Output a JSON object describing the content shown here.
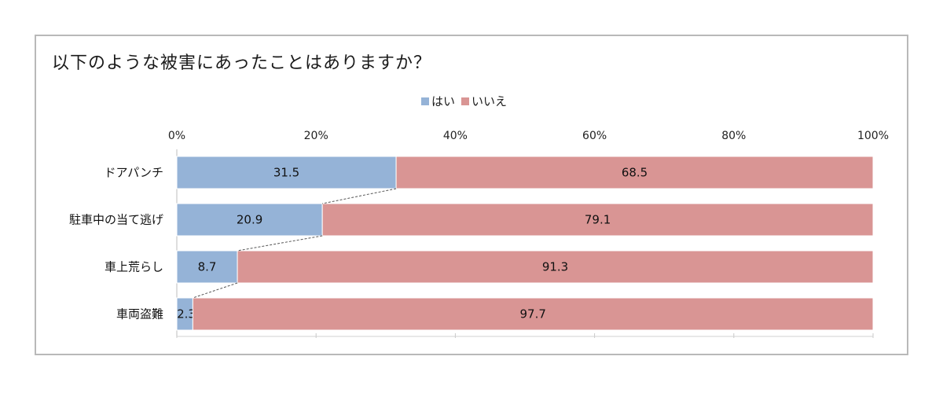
{
  "chart_data": {
    "type": "bar",
    "orientation": "horizontal",
    "stacked": "percent",
    "title": "以下のような被害にあったことはありますか？",
    "categories": [
      "ドアパンチ",
      "駐車中の当て逃げ",
      "車上荒らし",
      "車両盗難"
    ],
    "series": [
      {
        "name": "はい",
        "values": [
          31.5,
          20.9,
          8.7,
          2.3
        ],
        "labels": [
          "31.5",
          "20.9",
          "8.7",
          "2.3"
        ],
        "color": "#95b3d7"
      },
      {
        "name": "いいえ",
        "values": [
          68.5,
          79.1,
          91.3,
          97.7
        ],
        "labels": [
          "68.5",
          "79.1",
          "91.3",
          "97.7"
        ],
        "color": "#d99594"
      }
    ],
    "x_ticks": [
      "0%",
      "20%",
      "40%",
      "60%",
      "80%",
      "100%"
    ],
    "xlim": [
      0,
      100
    ],
    "legend_position": "top",
    "series_lines": true
  }
}
